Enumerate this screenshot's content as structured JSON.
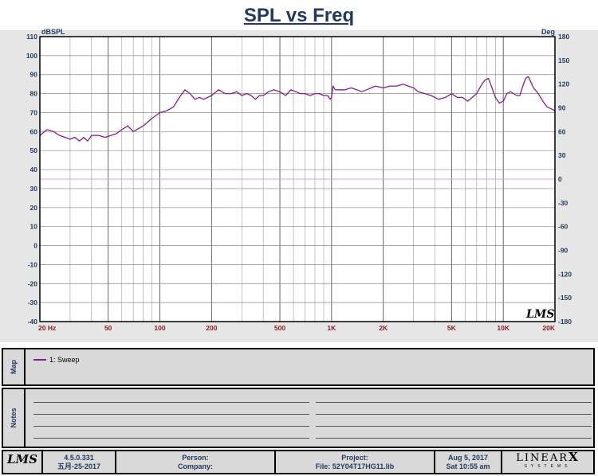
{
  "chart_data": {
    "type": "line",
    "title": "SPL vs Freq",
    "ylabel_left": "dBSPL",
    "ylabel_right": "Deg",
    "x_scale": "log",
    "xlim": [
      20,
      20000
    ],
    "ylim": [
      -40,
      110
    ],
    "ylim_right": [
      -180,
      180
    ],
    "x_ticks": [
      {
        "v": 20,
        "label": "20 Hz"
      },
      {
        "v": 50,
        "label": "50"
      },
      {
        "v": 100,
        "label": "100"
      },
      {
        "v": 200,
        "label": "200"
      },
      {
        "v": 500,
        "label": "500"
      },
      {
        "v": 1000,
        "label": "1K"
      },
      {
        "v": 2000,
        "label": "2K"
      },
      {
        "v": 5000,
        "label": "5K"
      },
      {
        "v": 10000,
        "label": "10K"
      },
      {
        "v": 20000,
        "label": "20K"
      }
    ],
    "y_ticks": [
      "110",
      "100",
      "90",
      "80",
      "70",
      "60",
      "50",
      "40",
      "30",
      "20",
      "10",
      "0",
      "-10",
      "-20",
      "-30",
      "-40"
    ],
    "y_ticks_right": [
      "180",
      "150",
      "120",
      "90",
      "60",
      "30",
      "0",
      "-30",
      "-60",
      "-90",
      "-120",
      "-150",
      "-180"
    ],
    "series": [
      {
        "name": "1: Sweep",
        "color": "#8a1c8a",
        "x": [
          20,
          22,
          24,
          26,
          28,
          30,
          32,
          34,
          36,
          38,
          40,
          44,
          48,
          52,
          56,
          60,
          65,
          70,
          80,
          90,
          100,
          110,
          120,
          130,
          140,
          150,
          160,
          170,
          180,
          200,
          220,
          240,
          260,
          280,
          300,
          320,
          340,
          360,
          380,
          400,
          430,
          460,
          500,
          540,
          580,
          620,
          660,
          700,
          750,
          800,
          850,
          900,
          950,
          980,
          1000,
          1020,
          1050,
          1100,
          1150,
          1200,
          1300,
          1400,
          1500,
          1600,
          1800,
          2000,
          2200,
          2400,
          2600,
          2800,
          3000,
          3200,
          3500,
          3800,
          4200,
          4600,
          5000,
          5400,
          5800,
          6200,
          6600,
          7000,
          7400,
          7800,
          8200,
          8600,
          9000,
          9500,
          10000,
          10500,
          11000,
          11500,
          12000,
          12500,
          13000,
          13500,
          14000,
          15000,
          16000,
          17000,
          18000,
          19000,
          20000
        ],
        "y": [
          58,
          61,
          60,
          58,
          57,
          56,
          57,
          55,
          57,
          55,
          58,
          58,
          57,
          58,
          59,
          61,
          63,
          60,
          63,
          67,
          70,
          71,
          73,
          78,
          82,
          80,
          77,
          78,
          77,
          79,
          82,
          80,
          80,
          81,
          79,
          80,
          79,
          77,
          79,
          79,
          81,
          82,
          81,
          79,
          82,
          81,
          80,
          80,
          79,
          80,
          80,
          79,
          79,
          77,
          78,
          84,
          82,
          82,
          82,
          82,
          83,
          82,
          81,
          82,
          84,
          83,
          84,
          84,
          85,
          84,
          83,
          81,
          80,
          79,
          77,
          78,
          80,
          78,
          78,
          76,
          78,
          80,
          84,
          87,
          88,
          83,
          78,
          75,
          76,
          80,
          81,
          80,
          79,
          79,
          84,
          88,
          89,
          83,
          80,
          76,
          73,
          72,
          71
        ]
      }
    ]
  },
  "panels": {
    "map_label": "Map",
    "notes_label": "Notes"
  },
  "footer": {
    "version": "4.5.0.331",
    "version_date": "五月-25-2017",
    "person_label": "Person:",
    "company_label": "Company:",
    "project_label": "Project:",
    "file_label": "File: 52Y04T17HG11.lib",
    "date": "Aug  5, 2017",
    "time": "Sat 10:55 am",
    "brand_top": "LINEAR",
    "brand_x": "X",
    "brand_bottom": "SYSTEMS",
    "lms_logo": "LMS"
  },
  "plot_watermark": "LMS"
}
